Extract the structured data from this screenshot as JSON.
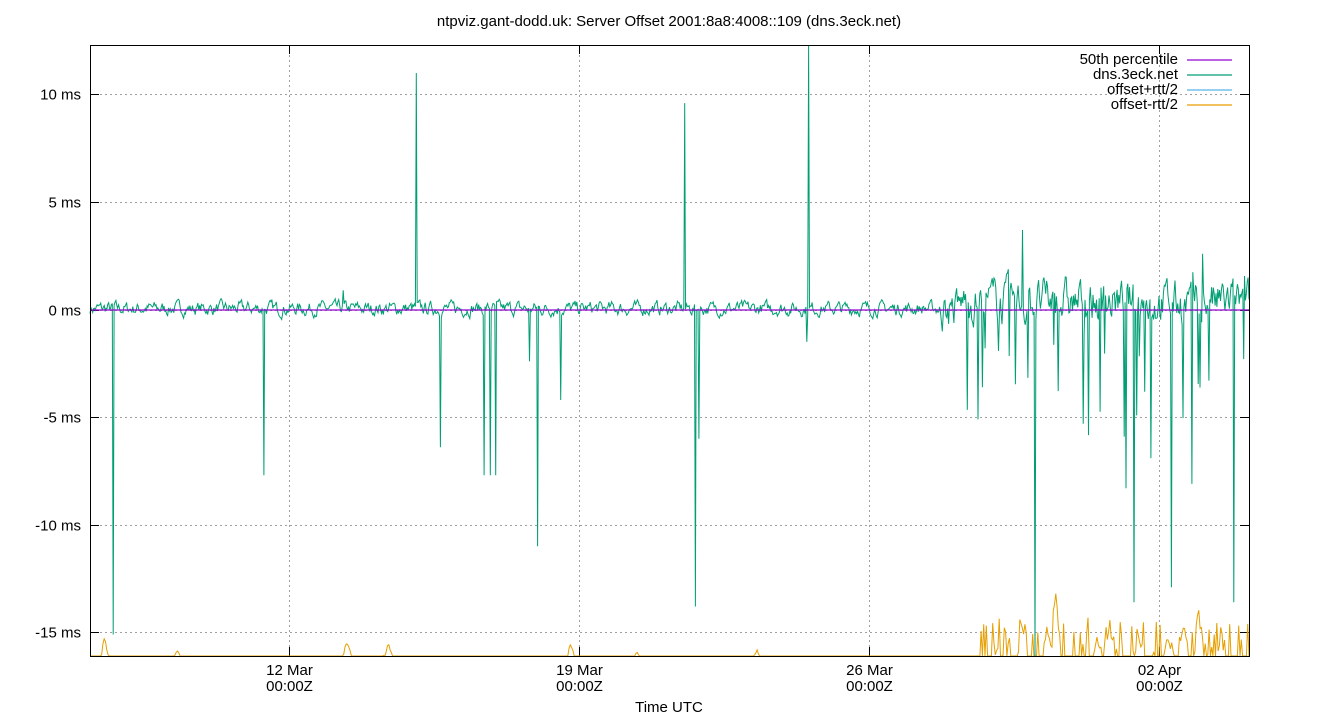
{
  "chart_data": {
    "type": "line",
    "title": "ntpviz.gant-dodd.uk: Server Offset 2001:8a8:4008::109 (dns.3eck.net)",
    "xlabel": "Time UTC",
    "ylabel": "",
    "ylim": [
      -16.1,
      12.3
    ],
    "xlim_days": [
      0,
      27.97
    ],
    "x_origin": "07 Mar ~04:50Z",
    "grid": true,
    "legend_position": "top-right inside",
    "y_ticks": [
      {
        "value": 10,
        "label": "10 ms"
      },
      {
        "value": 5,
        "label": "5 ms"
      },
      {
        "value": 0,
        "label": "0 ms"
      },
      {
        "value": -5,
        "label": "-5 ms"
      },
      {
        "value": -10,
        "label": "-10 ms"
      },
      {
        "value": -15,
        "label": "-15 ms"
      }
    ],
    "x_ticks": [
      {
        "day": 4.8,
        "label1": "12 Mar",
        "label2": "00:00Z"
      },
      {
        "day": 11.8,
        "label1": "19 Mar",
        "label2": "00:00Z"
      },
      {
        "day": 18.8,
        "label1": "26 Mar",
        "label2": "00:00Z"
      },
      {
        "day": 25.8,
        "label1": "02 Apr",
        "label2": "00:00Z"
      }
    ],
    "series": [
      {
        "name": "50th percentile",
        "color": "#9400d3",
        "values": [
          [
            0,
            0
          ],
          [
            27.97,
            0
          ]
        ]
      },
      {
        "name": "dns.3eck.net",
        "color": "#009e73",
        "spikes": [
          [
            0.55,
            -15.1
          ],
          [
            4.2,
            -7.7
          ],
          [
            6.1,
            0.9
          ],
          [
            7.87,
            11.0
          ],
          [
            8.45,
            -6.4
          ],
          [
            9.5,
            -7.7
          ],
          [
            9.65,
            -7.7
          ],
          [
            9.8,
            -7.7
          ],
          [
            10.6,
            -2.4
          ],
          [
            10.8,
            -11.0
          ],
          [
            11.35,
            -4.2
          ],
          [
            14.35,
            9.6
          ],
          [
            14.6,
            -13.8
          ],
          [
            14.7,
            -6.0
          ],
          [
            17.35,
            13.0
          ],
          [
            17.3,
            -1.5
          ],
          [
            21.6,
            -1.8
          ],
          [
            22.5,
            3.7
          ],
          [
            22.8,
            -16.1
          ],
          [
            25.0,
            -8.3
          ],
          [
            25.2,
            -13.6
          ],
          [
            25.6,
            -6.9
          ],
          [
            26.1,
            -12.9
          ],
          [
            26.6,
            -8.1
          ],
          [
            26.85,
            2.6
          ],
          [
            27.0,
            -3.3
          ],
          [
            27.6,
            -13.6
          ],
          [
            27.85,
            -2.3
          ]
        ]
      },
      {
        "name": "offset+rtt/2",
        "color": "#56b4e9",
        "values": []
      },
      {
        "name": "offset-rtt/2",
        "color": "#e69f00",
        "peaks": [
          [
            0.35,
            -15.2
          ],
          [
            2.1,
            -15.8
          ],
          [
            6.2,
            -15.4
          ],
          [
            7.2,
            -15.5
          ],
          [
            11.6,
            -15.5
          ],
          [
            13.2,
            -15.9
          ],
          [
            16.1,
            -15.8
          ],
          [
            21.9,
            -15.7
          ],
          [
            22.5,
            -14.8
          ],
          [
            23.1,
            -14.9
          ],
          [
            23.3,
            -13.0
          ],
          [
            24.3,
            -15.2
          ],
          [
            24.6,
            -14.8
          ],
          [
            25.3,
            -15.1
          ],
          [
            26.0,
            -15.2
          ],
          [
            26.4,
            -14.6
          ],
          [
            26.75,
            -13.8
          ],
          [
            27.3,
            -15.3
          ]
        ]
      }
    ]
  },
  "legend": [
    {
      "label": "50th percentile",
      "color": "#9400d3"
    },
    {
      "label": "dns.3eck.net",
      "color": "#009e73"
    },
    {
      "label": "offset+rtt/2",
      "color": "#56b4e9"
    },
    {
      "label": "offset-rtt/2",
      "color": "#e69f00"
    }
  ]
}
